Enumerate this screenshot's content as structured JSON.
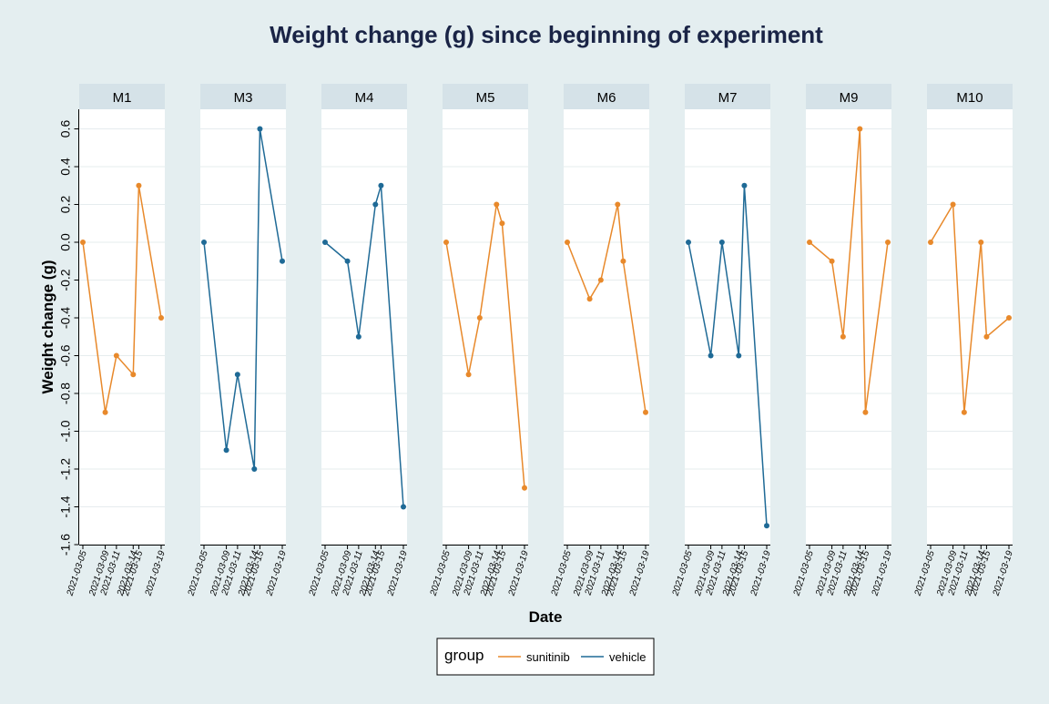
{
  "chart_data": {
    "type": "line",
    "title": "Weight change (g) since beginning of experiment",
    "xlabel": "Date",
    "ylabel": "Weight change (g)",
    "ylim": [
      -1.6,
      0.6
    ],
    "yticks": [
      "0.6",
      "0.4",
      "0.2",
      "0.0",
      "-0.2",
      "-0.4",
      "-0.6",
      "-0.8",
      "-1.0",
      "-1.2",
      "-1.4",
      "-1.6"
    ],
    "x_dates": [
      "2021-03-05",
      "2021-03-09",
      "2021-03-11",
      "2021-03-14",
      "2021-03-15",
      "2021-03-19"
    ],
    "xlim": [
      "2021-03-05",
      "2021-03-19"
    ],
    "grid": true,
    "legend": {
      "title": "group",
      "position": "bottom",
      "entries": [
        {
          "label": "sunitinib",
          "color": "#e8892b"
        },
        {
          "label": "vehicle",
          "color": "#1f6a96"
        }
      ]
    },
    "panels": [
      {
        "name": "M1",
        "group": "sunitinib",
        "values": [
          0,
          -0.9,
          -0.6,
          -0.7,
          0.3,
          -0.4
        ]
      },
      {
        "name": "M3",
        "group": "vehicle",
        "values": [
          0,
          -1.1,
          -0.7,
          -1.2,
          0.6,
          -0.1
        ]
      },
      {
        "name": "M4",
        "group": "vehicle",
        "values": [
          0,
          -0.1,
          -0.5,
          0.2,
          0.3,
          -1.4
        ]
      },
      {
        "name": "M5",
        "group": "sunitinib",
        "values": [
          0,
          -0.7,
          -0.4,
          0.2,
          0.1,
          -1.3
        ]
      },
      {
        "name": "M6",
        "group": "sunitinib",
        "values": [
          0,
          -0.3,
          -0.2,
          0.2,
          -0.1,
          -0.9
        ]
      },
      {
        "name": "M7",
        "group": "vehicle",
        "values": [
          0,
          -0.6,
          0,
          -0.6,
          0.3,
          -1.5
        ]
      },
      {
        "name": "M9",
        "group": "sunitinib",
        "values": [
          0,
          -0.1,
          -0.5,
          0.6,
          -0.9,
          0
        ]
      },
      {
        "name": "M10",
        "group": "sunitinib",
        "values": [
          0,
          0.2,
          -0.9,
          0,
          -0.5,
          -0.4
        ]
      }
    ]
  }
}
